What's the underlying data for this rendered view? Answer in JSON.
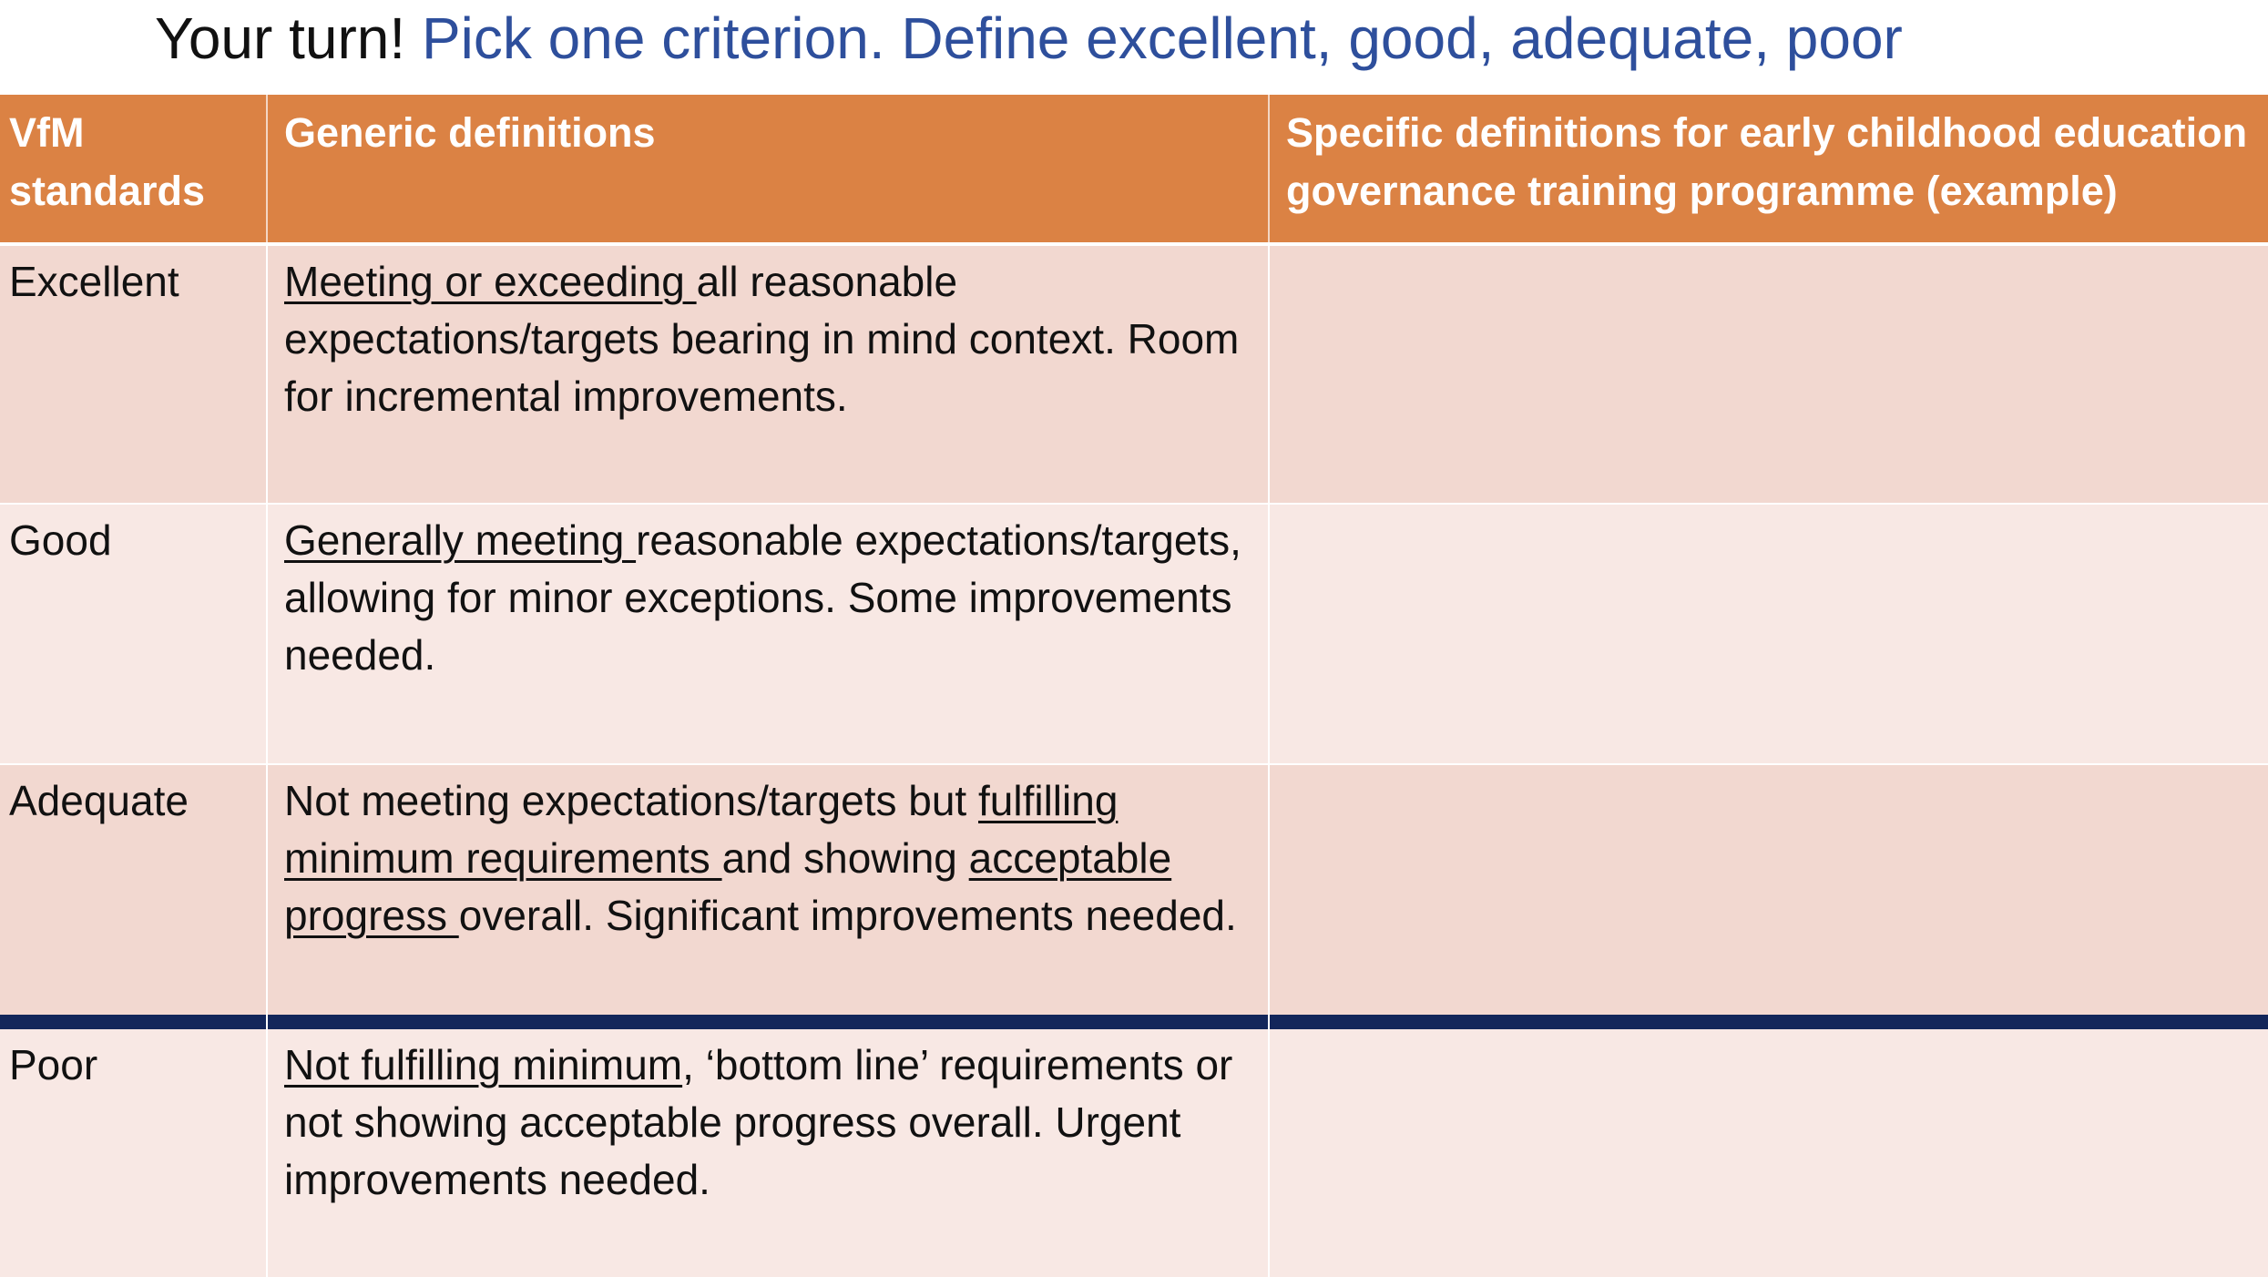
{
  "slide": {
    "title_lead": "Your turn!",
    "title_accent": "Pick one criterion. Define excellent, good, adequate, poor"
  },
  "table": {
    "headers": [
      "VfM standards",
      "Generic definitions",
      "Specific definitions for early childhood education governance training programme (example)"
    ],
    "rows": [
      {
        "standard": "Excellent",
        "def_underlined": "Meeting or exceeding ",
        "def_rest": "all reasonable expectations/targets bearing in mind context. Room for incremental improvements.",
        "specific": ""
      },
      {
        "standard": "Good",
        "def_underlined": "Generally meeting ",
        "def_rest": "reasonable expectations/targets, allowing for minor exceptions. Some improvements needed.",
        "specific": ""
      },
      {
        "standard": "Adequate",
        "def_part1": "Not meeting expectations/targets but ",
        "def_underlined_1": "fulfilling minimum requirements ",
        "def_part2": "and showing ",
        "def_underlined_2": "acceptable progress ",
        "def_part3": "overall. Significant improvements needed.",
        "specific": ""
      },
      {
        "standard": "Poor",
        "def_underlined": "Not fulfilling minimum",
        "def_rest": ", ‘bottom line’ requirements or not showing acceptable progress overall. Urgent improvements needed.",
        "specific": ""
      }
    ]
  },
  "colors": {
    "header_bg": "#db8244",
    "row_dark": "#f2d8d0",
    "row_light": "#f8e8e4",
    "divider": "#13265a",
    "title_accent": "#2e4f9c"
  }
}
